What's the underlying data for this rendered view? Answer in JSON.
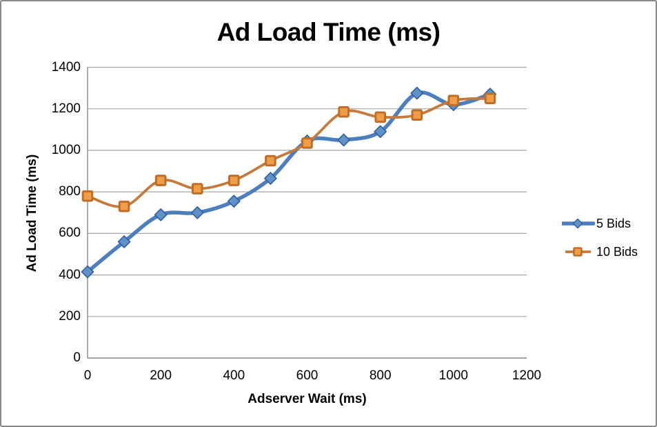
{
  "frame": {
    "background": "#ffffff",
    "border_color": "#8a8a8a"
  },
  "chart_data": {
    "type": "line",
    "title": "Ad Load Time (ms)",
    "xlabel": "Adserver Wait (ms)",
    "ylabel": "Ad Load Time (ms)",
    "x": [
      0,
      100,
      200,
      300,
      400,
      500,
      600,
      700,
      800,
      900,
      1000,
      1100
    ],
    "series": [
      {
        "name": "5 Bids",
        "values": [
          415,
          560,
          690,
          700,
          755,
          865,
          1045,
          1050,
          1090,
          1275,
          1220,
          1270
        ],
        "color": "#4d7ebd",
        "marker": "diamond",
        "marker_fill": "#6191ca",
        "marker_stroke": "#2e5e9c",
        "line_width": 5.5
      },
      {
        "name": "10 Bids",
        "values": [
          780,
          730,
          855,
          815,
          855,
          950,
          1035,
          1185,
          1160,
          1170,
          1240,
          1250
        ],
        "color": "#c47a3d",
        "marker": "square",
        "marker_fill": "#f09e45",
        "marker_stroke": "#bf6d28",
        "line_width": 3.8
      }
    ],
    "x_ticks": [
      0,
      200,
      400,
      600,
      800,
      1000,
      1200
    ],
    "y_ticks": [
      0,
      200,
      400,
      600,
      800,
      1000,
      1200,
      1400
    ],
    "xlim": [
      0,
      1200
    ],
    "ylim": [
      0,
      1400
    ],
    "grid": "horizontal",
    "gridline_color": "#a6a6a6",
    "axis_color": "#898989",
    "legend_position": "right",
    "smooth": true,
    "text_color": "#000000"
  }
}
